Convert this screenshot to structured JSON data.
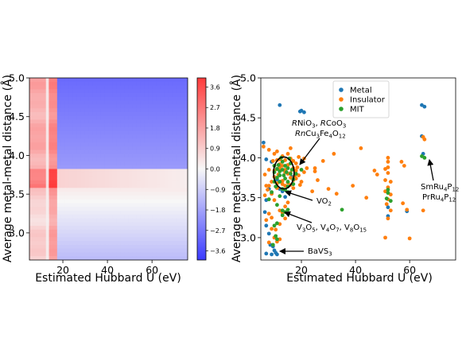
{
  "chart_data": [
    {
      "type": "heatmap",
      "xlabel": "Estimated Hubbard U (eV)",
      "ylabel": "Average metal-metal distance (Å)",
      "xlim": [
        5,
        76
      ],
      "ylim": [
        2.65,
        5.0
      ],
      "xticks": [
        "20",
        "40",
        "60"
      ],
      "xtick_values": [
        20,
        40,
        60
      ],
      "yticks": [
        "3.0",
        "3.5",
        "4.0",
        "4.5",
        "5.0"
      ],
      "ytick_values": [
        3.0,
        3.5,
        4.0,
        4.5,
        5.0
      ],
      "vertical_boundaries": [
        13,
        17
      ],
      "horizontal_boundaries": [
        3.58,
        3.84
      ],
      "region_values": {
        "low_u": [
          0.8,
          2.5,
          1.6
        ],
        "mid_u": [
          1.8,
          3.9,
          2.3
        ],
        "high_u": [
          -0.9,
          0.6,
          -1.0
        ],
        "mid_d_x_gradient": [
          0.8,
          0.2
        ],
        "lower_d_y_gradient": [
          0.3,
          -1.3
        ],
        "upper_d_y_gradient": [
          -2.0,
          -3.0
        ]
      },
      "colorbar": {
        "ticks": [
          "3.6",
          "2.7",
          "1.8",
          "0.9",
          "0.0",
          "−0.9",
          "−1.8",
          "−2.7",
          "−3.6"
        ],
        "tick_values": [
          3.6,
          2.7,
          1.8,
          0.9,
          0.0,
          -0.9,
          -1.8,
          -2.7,
          -3.6
        ],
        "range": [
          -4.0,
          4.0
        ]
      }
    },
    {
      "type": "scatter",
      "xlabel": "Estimated Hubbard U (eV)",
      "ylabel": "Average metal-metal distance (Å)",
      "xlim": [
        5,
        77
      ],
      "ylim": [
        2.72,
        5.0
      ],
      "xticks": [
        "20",
        "40",
        "60"
      ],
      "xtick_values": [
        20,
        40,
        60
      ],
      "yticks": [
        "3.0",
        "3.5",
        "4.0",
        "4.5",
        "5.0"
      ],
      "ytick_values": [
        3.0,
        3.5,
        4.0,
        4.5,
        5.0
      ],
      "legend": {
        "placement": "top-center",
        "entries": [
          {
            "label": "Metal",
            "color": "#1f77b4"
          },
          {
            "label": "Insulator",
            "color": "#ff7f0e"
          },
          {
            "label": "MIT",
            "color": "#2ca02c"
          }
        ]
      },
      "series": [
        {
          "name": "Metal",
          "color": "#1f77b4",
          "points": [
            [
              12,
              4.66
            ],
            [
              19.5,
              4.58
            ],
            [
              21,
              4.57
            ],
            [
              20,
              4.59
            ],
            [
              64.5,
              4.66
            ],
            [
              65.5,
              4.64
            ],
            [
              6,
              4.19
            ],
            [
              7,
              3.98
            ],
            [
              9,
              3.95
            ],
            [
              12,
              3.89
            ],
            [
              14,
              3.84
            ],
            [
              7,
              3.47
            ],
            [
              6.5,
              3.32
            ],
            [
              7,
              3.15
            ],
            [
              8,
              3.05
            ],
            [
              8.5,
              2.91
            ],
            [
              9.5,
              2.89
            ],
            [
              10,
              2.84
            ],
            [
              10.5,
              2.81
            ],
            [
              9,
              2.79
            ],
            [
              11,
              2.79
            ],
            [
              7,
              2.8
            ],
            [
              52,
              3.38
            ],
            [
              52,
              3.27
            ],
            [
              59,
              3.33
            ],
            [
              65,
              4.05
            ],
            [
              64.5,
              4.27
            ],
            [
              13,
              3.58
            ],
            [
              14,
              3.51
            ],
            [
              9,
              3.55
            ],
            [
              8,
              3.61
            ],
            [
              12,
              3.61
            ],
            [
              16.5,
              3.76
            ],
            [
              11,
              3.73
            ]
          ]
        },
        {
          "name": "Insulator",
          "color": "#ff7f0e",
          "points": [
            [
              6,
              4.14
            ],
            [
              8,
              4.1
            ],
            [
              10,
              4.05
            ],
            [
              11,
              4.08
            ],
            [
              12,
              3.98
            ],
            [
              13,
              3.9
            ],
            [
              14,
              3.85
            ],
            [
              15,
              3.8
            ],
            [
              16,
              3.75
            ],
            [
              17,
              3.72
            ],
            [
              18,
              3.84
            ],
            [
              19,
              3.78
            ],
            [
              20,
              3.7
            ],
            [
              21,
              3.82
            ],
            [
              22,
              3.87
            ],
            [
              16,
              4.12
            ],
            [
              19,
              4.01
            ],
            [
              21,
              3.99
            ],
            [
              25,
              3.87
            ],
            [
              25,
              3.83
            ],
            [
              28,
              3.96
            ],
            [
              32,
              4.05
            ],
            [
              26,
              3.72
            ],
            [
              30,
              3.61
            ],
            [
              33,
              3.55
            ],
            [
              39,
              3.65
            ],
            [
              42,
              4.12
            ],
            [
              44,
              3.5
            ],
            [
              47,
              3.84
            ],
            [
              48,
              3.79
            ],
            [
              51,
              3.86
            ],
            [
              52,
              3.88
            ],
            [
              52,
              3.81
            ],
            [
              51,
              3.72
            ],
            [
              53,
              3.7
            ],
            [
              52,
              3.63
            ],
            [
              51,
              3.58
            ],
            [
              53,
              3.54
            ],
            [
              52,
              3.48
            ],
            [
              51.5,
              3.42
            ],
            [
              53,
              3.34
            ],
            [
              52,
              3.24
            ],
            [
              52,
              3.95
            ],
            [
              52,
              4.0
            ],
            [
              57,
              3.95
            ],
            [
              58,
              3.9
            ],
            [
              57.5,
              3.43
            ],
            [
              59,
              3.35
            ],
            [
              60,
              2.99
            ],
            [
              65,
              4.26
            ],
            [
              65.5,
              4.23
            ],
            [
              65,
              3.34
            ],
            [
              51,
              3.0
            ],
            [
              8,
              3.65
            ],
            [
              7.5,
              3.6
            ],
            [
              6.5,
              3.53
            ],
            [
              9,
              3.55
            ],
            [
              8,
              3.3
            ],
            [
              9,
              3.25
            ],
            [
              7,
              3.22
            ],
            [
              9,
              3.11
            ],
            [
              10.5,
              3.1
            ],
            [
              10,
              3.0
            ],
            [
              11,
              2.95
            ],
            [
              8,
              2.94
            ],
            [
              12,
              2.98
            ],
            [
              24,
              3.58
            ],
            [
              10,
              3.47
            ],
            [
              13,
              3.31
            ],
            [
              14,
              3.24
            ],
            [
              12,
              3.34
            ],
            [
              12,
              3.17
            ],
            [
              14,
              3.39
            ],
            [
              15,
              3.44
            ],
            [
              17,
              3.62
            ],
            [
              11,
              3.62
            ],
            [
              11,
              3.68
            ],
            [
              12,
              3.92
            ],
            [
              14,
              3.97
            ],
            [
              16,
              3.99
            ],
            [
              17,
              3.96
            ],
            [
              18,
              3.93
            ],
            [
              18.5,
              3.88
            ],
            [
              15,
              3.69
            ],
            [
              13,
              3.71
            ],
            [
              14,
              3.82
            ],
            [
              11.5,
              3.79
            ],
            [
              10,
              3.9
            ],
            [
              10,
              3.84
            ],
            [
              10,
              3.76
            ],
            [
              9,
              3.7
            ],
            [
              7,
              3.65
            ],
            [
              13,
              4.02
            ],
            [
              15,
              4.05
            ],
            [
              9.5,
              3.96
            ],
            [
              8,
              3.85
            ],
            [
              6.5,
              3.79
            ],
            [
              17,
              3.87
            ],
            [
              16,
              3.66
            ],
            [
              12,
              3.87
            ],
            [
              13,
              3.67
            ],
            [
              17.5,
              3.77
            ],
            [
              19.5,
              3.66
            ],
            [
              18,
              3.74
            ],
            [
              16,
              3.81
            ],
            [
              11,
              3.97
            ],
            [
              14,
              3.65
            ],
            [
              15,
              3.91
            ],
            [
              11,
              3.86
            ]
          ]
        },
        {
          "name": "MIT",
          "color": "#2ca02c",
          "points": [
            [
              10,
              3.82
            ],
            [
              11,
              3.86
            ],
            [
              12,
              3.78
            ],
            [
              13,
              3.85
            ],
            [
              14,
              3.74
            ],
            [
              15,
              3.87
            ],
            [
              16,
              3.8
            ],
            [
              12,
              3.7
            ],
            [
              14,
              3.9
            ],
            [
              11,
              3.75
            ],
            [
              13,
              3.95
            ],
            [
              15,
              3.7
            ],
            [
              10,
              3.9
            ],
            [
              16,
              3.93
            ],
            [
              17,
              3.73
            ],
            [
              18,
              3.8
            ],
            [
              13,
              3.61
            ],
            [
              15,
              3.57
            ],
            [
              12,
              3.52
            ],
            [
              13,
              3.34
            ],
            [
              14,
              3.32
            ],
            [
              15,
              3.35
            ],
            [
              13,
              3.28
            ],
            [
              10,
              3.15
            ],
            [
              11,
              3.18
            ],
            [
              10.5,
              3.02
            ],
            [
              11,
              2.98
            ],
            [
              9.5,
              2.91
            ],
            [
              64.5,
              4.02
            ],
            [
              65.5,
              4.0
            ],
            [
              52,
              3.56
            ],
            [
              51.5,
              3.49
            ],
            [
              53,
              3.46
            ],
            [
              52,
              3.6
            ],
            [
              35,
              3.35
            ],
            [
              20,
              3.85
            ],
            [
              9,
              3.57
            ],
            [
              8,
              3.48
            ],
            [
              11,
              3.41
            ],
            [
              15,
              3.64
            ],
            [
              17,
              3.67
            ],
            [
              15.5,
              3.99
            ],
            [
              12.5,
              4.0
            ],
            [
              10,
              3.7
            ],
            [
              11.5,
              3.91
            ],
            [
              13.5,
              3.78
            ],
            [
              14.5,
              3.82
            ],
            [
              16.5,
              3.85
            ],
            [
              12,
              3.83
            ],
            [
              14,
              3.6
            ],
            [
              10.5,
              3.64
            ]
          ]
        }
      ],
      "annotations": [
        {
          "label_parts": [
            {
              "t": "R",
              "italic": true
            },
            {
              "t": "NiO"
            },
            {
              "t": "3",
              "sub": true
            },
            {
              "t": ", "
            },
            {
              "t": "R",
              "italic": true
            },
            {
              "t": "CoO"
            },
            {
              "t": "3",
              "sub": true
            }
          ]
        },
        {
          "label_parts": [
            {
              "t": "Rn",
              "italic": true
            },
            {
              "t": "Cu"
            },
            {
              "t": "3",
              "sub": true
            },
            {
              "t": "Fe"
            },
            {
              "t": "4",
              "sub": true
            },
            {
              "t": "O"
            },
            {
              "t": "12",
              "sub": true
            }
          ]
        },
        {
          "label_parts": [
            {
              "t": "VO"
            },
            {
              "t": "2",
              "sub": true
            }
          ]
        },
        {
          "label_parts": [
            {
              "t": "V"
            },
            {
              "t": "3",
              "sub": true
            },
            {
              "t": "O"
            },
            {
              "t": "5",
              "sub": true
            },
            {
              "t": ", V"
            },
            {
              "t": "4",
              "sub": true
            },
            {
              "t": "O"
            },
            {
              "t": "7",
              "sub": true
            },
            {
              "t": ", V"
            },
            {
              "t": "8",
              "sub": true
            },
            {
              "t": "O"
            },
            {
              "t": "15",
              "sub": true
            }
          ]
        },
        {
          "label_parts": [
            {
              "t": "BaVS"
            },
            {
              "t": "3",
              "sub": true
            }
          ]
        },
        {
          "label_parts": [
            {
              "t": "SmRu"
            },
            {
              "t": "4",
              "sub": true
            },
            {
              "t": "P"
            },
            {
              "t": "12",
              "sub": true
            }
          ]
        },
        {
          "label_parts": [
            {
              "t": "PrRu"
            },
            {
              "t": "4",
              "sub": true
            },
            {
              "t": "P"
            },
            {
              "t": "12",
              "sub": true
            }
          ]
        }
      ],
      "circle_highlight": {
        "cx": 13.5,
        "cy": 3.81,
        "rx": 3.8,
        "ry": 0.2
      }
    }
  ]
}
